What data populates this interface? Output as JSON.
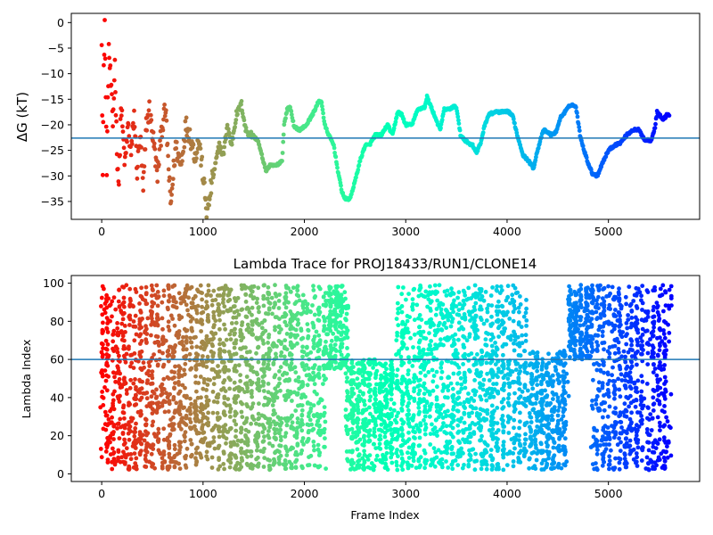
{
  "chart_data": [
    {
      "type": "scatter",
      "title": "",
      "xlabel": "",
      "ylabel": "ΔG (kT)",
      "xlim": [
        -300,
        5900
      ],
      "ylim": [
        -38.5,
        1.8
      ],
      "xticks": [
        0,
        1000,
        2000,
        3000,
        4000,
        5000
      ],
      "yticks": [
        0,
        -5,
        -10,
        -15,
        -20,
        -25,
        -30,
        -35
      ],
      "hline": {
        "y": -22.6,
        "color": "#1f77b4"
      },
      "colormap": "rainbow",
      "color_order": "reversed (red at frame 0, violet at frame 5600)",
      "grid": false,
      "x_range": [
        0,
        5600
      ],
      "keypoints": [
        [
          0,
          -2.5
        ],
        [
          10,
          -30
        ],
        [
          20,
          -10
        ],
        [
          30,
          0.5
        ],
        [
          40,
          -15
        ],
        [
          50,
          -28
        ],
        [
          70,
          -5
        ],
        [
          90,
          -12
        ],
        [
          110,
          -20
        ],
        [
          130,
          -8
        ],
        [
          150,
          -25
        ],
        [
          170,
          -32
        ],
        [
          190,
          -16
        ],
        [
          210,
          -22
        ],
        [
          230,
          -28
        ],
        [
          260,
          -20
        ],
        [
          290,
          -26
        ],
        [
          320,
          -18
        ],
        [
          350,
          -29
        ],
        [
          380,
          -22
        ],
        [
          410,
          -33
        ],
        [
          440,
          -20
        ],
        [
          470,
          -17
        ],
        [
          510,
          -23
        ],
        [
          550,
          -30
        ],
        [
          590,
          -21
        ],
        [
          630,
          -17
        ],
        [
          680,
          -36
        ],
        [
          730,
          -24
        ],
        [
          780,
          -28
        ],
        [
          830,
          -20
        ],
        [
          870,
          -22
        ],
        [
          920,
          -26
        ],
        [
          960,
          -23
        ],
        [
          1000,
          -30
        ],
        [
          1040,
          -38
        ],
        [
          1080,
          -32
        ],
        [
          1120,
          -28
        ],
        [
          1160,
          -24
        ],
        [
          1200,
          -26
        ],
        [
          1240,
          -20
        ],
        [
          1280,
          -24
        ],
        [
          1330,
          -18
        ],
        [
          1380,
          -16
        ],
        [
          1420,
          -21
        ],
        [
          1480,
          -22
        ],
        [
          1540,
          -23
        ],
        [
          1580,
          -26
        ],
        [
          1620,
          -29
        ],
        [
          1660,
          -28
        ],
        [
          1720,
          -28
        ],
        [
          1780,
          -27
        ],
        [
          1800,
          -20
        ],
        [
          1830,
          -17
        ],
        [
          1860,
          -16.5
        ],
        [
          1900,
          -20.5
        ],
        [
          1960,
          -21
        ],
        [
          2020,
          -20
        ],
        [
          2080,
          -18
        ],
        [
          2140,
          -15.5
        ],
        [
          2170,
          -15.5
        ],
        [
          2200,
          -20
        ],
        [
          2240,
          -22
        ],
        [
          2290,
          -24
        ],
        [
          2330,
          -29
        ],
        [
          2370,
          -33
        ],
        [
          2400,
          -34.5
        ],
        [
          2450,
          -34.5
        ],
        [
          2500,
          -31
        ],
        [
          2550,
          -27
        ],
        [
          2600,
          -24
        ],
        [
          2640,
          -24
        ],
        [
          2700,
          -22
        ],
        [
          2760,
          -22
        ],
        [
          2820,
          -20
        ],
        [
          2870,
          -22
        ],
        [
          2920,
          -17.5
        ],
        [
          2960,
          -18
        ],
        [
          3000,
          -20
        ],
        [
          3060,
          -20
        ],
        [
          3120,
          -17
        ],
        [
          3190,
          -16.5
        ],
        [
          3210,
          -14.5
        ],
        [
          3250,
          -16.5
        ],
        [
          3300,
          -19
        ],
        [
          3340,
          -21
        ],
        [
          3380,
          -17
        ],
        [
          3420,
          -17
        ],
        [
          3470,
          -16.5
        ],
        [
          3500,
          -16.5
        ],
        [
          3540,
          -22
        ],
        [
          3610,
          -23.5
        ],
        [
          3660,
          -24
        ],
        [
          3700,
          -25.5
        ],
        [
          3740,
          -23.5
        ],
        [
          3780,
          -20
        ],
        [
          3820,
          -18
        ],
        [
          3880,
          -17.5
        ],
        [
          3950,
          -17.5
        ],
        [
          4020,
          -17.5
        ],
        [
          4060,
          -18.5
        ],
        [
          4100,
          -22
        ],
        [
          4160,
          -26
        ],
        [
          4210,
          -27
        ],
        [
          4260,
          -28.5
        ],
        [
          4300,
          -25
        ],
        [
          4360,
          -21
        ],
        [
          4400,
          -21.5
        ],
        [
          4440,
          -22
        ],
        [
          4480,
          -21.5
        ],
        [
          4530,
          -18.5
        ],
        [
          4590,
          -17
        ],
        [
          4630,
          -16
        ],
        [
          4680,
          -16.5
        ],
        [
          4720,
          -22
        ],
        [
          4760,
          -25
        ],
        [
          4800,
          -27.5
        ],
        [
          4840,
          -29.5
        ],
        [
          4890,
          -30
        ],
        [
          4940,
          -27.5
        ],
        [
          5000,
          -25
        ],
        [
          5060,
          -24
        ],
        [
          5120,
          -23.5
        ],
        [
          5180,
          -22
        ],
        [
          5240,
          -21
        ],
        [
          5300,
          -21
        ],
        [
          5360,
          -23
        ],
        [
          5420,
          -23
        ],
        [
          5460,
          -20.5
        ],
        [
          5480,
          -17.5
        ],
        [
          5500,
          -18
        ],
        [
          5540,
          -19
        ],
        [
          5580,
          -18
        ]
      ]
    },
    {
      "type": "scatter",
      "title": "Lambda Trace for PROJ18433/RUN1/CLONE14",
      "xlabel": "Frame Index",
      "ylabel": "Lambda Index",
      "xlim": [
        -300,
        5900
      ],
      "ylim": [
        -4,
        104
      ],
      "xticks": [
        0,
        1000,
        2000,
        3000,
        4000,
        5000
      ],
      "yticks": [
        0,
        20,
        40,
        60,
        80,
        100
      ],
      "hline": {
        "y": 60,
        "color": "#1f77b4"
      },
      "colormap": "rainbow",
      "color_order": "reversed (red at frame 0, violet at frame 5600)",
      "grid": false,
      "x_range": [
        0,
        5600
      ],
      "value_range": [
        2,
        99
      ],
      "bands": [
        {
          "x": [
            0,
            120
          ],
          "y": [
            2,
            99
          ]
        },
        {
          "x": [
            120,
            600
          ],
          "y": [
            2,
            99
          ]
        },
        {
          "x": [
            600,
            1000
          ],
          "y": [
            2,
            99
          ]
        },
        {
          "x": [
            1000,
            1400
          ],
          "y": [
            2,
            99
          ]
        },
        {
          "x": [
            1400,
            2200
          ],
          "y": [
            2,
            99
          ]
        },
        {
          "x": [
            2200,
            2420
          ],
          "y": [
            55,
            99
          ]
        },
        {
          "x": [
            2400,
            2900
          ],
          "y": [
            2,
            60
          ]
        },
        {
          "x": [
            2900,
            3250
          ],
          "y": [
            2,
            99
          ]
        },
        {
          "x": [
            3250,
            3700
          ],
          "y": [
            2,
            99
          ]
        },
        {
          "x": [
            3700,
            4200
          ],
          "y": [
            2,
            99
          ]
        },
        {
          "x": [
            4200,
            4600
          ],
          "y": [
            2,
            65
          ]
        },
        {
          "x": [
            4600,
            4850
          ],
          "y": [
            60,
            99
          ]
        },
        {
          "x": [
            4850,
            5600
          ],
          "y": [
            2,
            99
          ]
        }
      ]
    }
  ]
}
